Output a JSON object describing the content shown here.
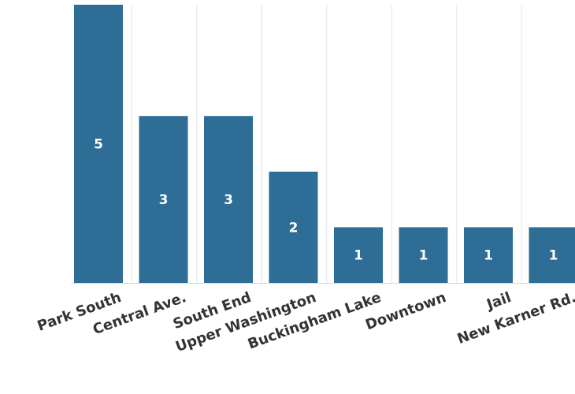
{
  "chart_data": {
    "type": "bar",
    "title": "",
    "xlabel": "",
    "ylabel": "",
    "categories": [
      "Park South",
      "Central Ave.",
      "South End",
      "Upper Washington",
      "Buckingham Lake",
      "Downtown",
      "Jail",
      "New Karner Rd."
    ],
    "values": [
      5,
      3,
      3,
      2,
      1,
      1,
      1,
      1
    ],
    "ylim": [
      0,
      5
    ],
    "grid": true,
    "legend": "none",
    "data_labels": true,
    "bar_color": "#2e6d96",
    "label_color": "#ffffff",
    "tick_label_color": "#333333",
    "grid_color": "#e6e6e6"
  }
}
